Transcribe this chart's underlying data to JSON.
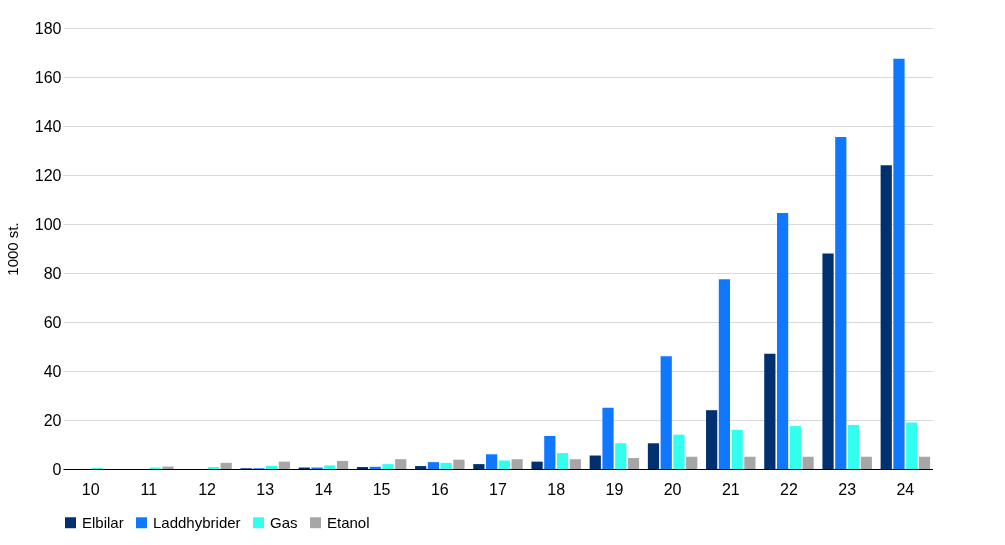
{
  "chart_data": {
    "type": "bar",
    "ylabel": "1000 st.",
    "categories": [
      "10",
      "11",
      "12",
      "13",
      "14",
      "15",
      "16",
      "17",
      "18",
      "19",
      "20",
      "21",
      "22",
      "23",
      "24"
    ],
    "series": [
      {
        "name": "Elbilar",
        "color": "#003070",
        "values": [
          0,
          0,
          null,
          0.3,
          0.6,
          0.8,
          1.2,
          2,
          3,
          5.5,
          10.5,
          24,
          47,
          88,
          124
        ]
      },
      {
        "name": "Laddhybrider",
        "color": "#1077ff",
        "values": [
          0,
          0,
          null,
          0.3,
          0.6,
          0.9,
          2.8,
          6,
          13.5,
          25,
          46,
          77.5,
          104.5,
          135.5,
          167.5
        ]
      },
      {
        "name": "Gas",
        "color": "#33ffee",
        "values": [
          0.4,
          0.6,
          0.8,
          1.3,
          1.5,
          2,
          2.5,
          3.5,
          6.5,
          10.5,
          14,
          16,
          17.5,
          18,
          19
        ]
      },
      {
        "name": "Etanol",
        "color": "#a6a6a6",
        "values": [
          null,
          1,
          2.5,
          3,
          3.3,
          4,
          3.8,
          4,
          4,
          4.5,
          5,
          5,
          5,
          5,
          5
        ]
      }
    ],
    "ylim": [
      0,
      180
    ],
    "yticks": [
      0,
      20,
      40,
      60,
      80,
      100,
      120,
      140,
      160,
      180
    ],
    "grid": "y",
    "legend": "bottom"
  }
}
